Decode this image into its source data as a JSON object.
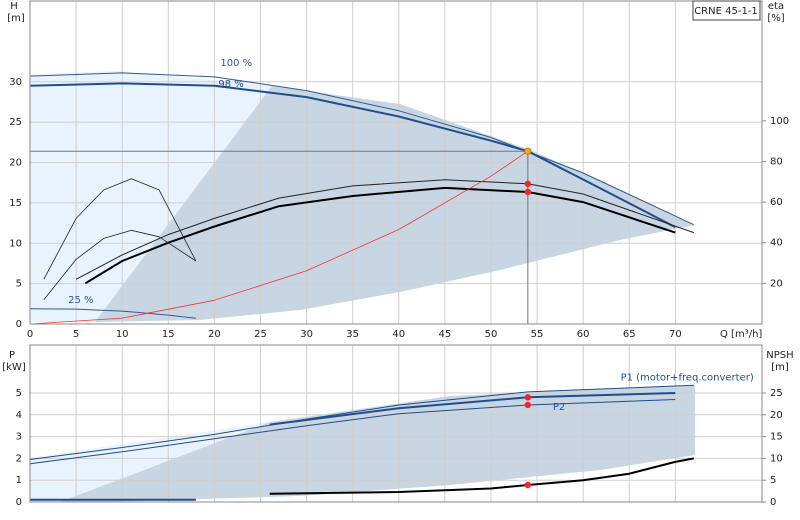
{
  "chart_data": [
    {
      "type": "line",
      "title": "CRNE 45-1-1",
      "x_label": "Q [m³/h]",
      "y_label": "H",
      "y_unit": "[m]",
      "y2_label": "eta",
      "y2_unit": "[%]",
      "xlim": [
        0,
        79.4
      ],
      "xticks": [
        0,
        5,
        10,
        15,
        20,
        25,
        30,
        35,
        40,
        45,
        50,
        55,
        60,
        65,
        70
      ],
      "ylim": [
        0,
        40
      ],
      "yticks": [
        0,
        5,
        10,
        15,
        20,
        25,
        30
      ],
      "y2lim": [
        0,
        159
      ],
      "y2ticks": [
        20,
        40,
        60,
        80,
        100
      ],
      "grid": true,
      "series": [
        {
          "name": "100 %",
          "color": "#2f5b94",
          "x": [
            0,
            10,
            20,
            30,
            40,
            50,
            60,
            72
          ],
          "values": [
            30.7,
            31.1,
            30.6,
            28.9,
            26.4,
            23.1,
            18.7,
            12.3
          ]
        },
        {
          "name": "98 %",
          "color": "#1f4e8c",
          "x": [
            0,
            10,
            20,
            30,
            40,
            50,
            54,
            60,
            70
          ],
          "values": [
            29.5,
            29.8,
            29.5,
            28.1,
            25.7,
            22.7,
            21.4,
            17.9,
            12.0
          ]
        },
        {
          "color": "#222222",
          "axis": "y2",
          "x": [
            5,
            10,
            15,
            20,
            27,
            35,
            45,
            54,
            60,
            72
          ],
          "values": [
            22,
            34,
            44,
            52,
            62,
            68,
            71,
            69,
            64,
            45
          ]
        },
        {
          "color": "#000000",
          "axis": "y2",
          "x": [
            6,
            10,
            15,
            20,
            27,
            35,
            45,
            54,
            60,
            70
          ],
          "values": [
            20,
            31,
            40,
            48,
            58,
            63,
            67,
            65,
            60,
            45
          ]
        },
        {
          "color": "#222222",
          "axis": "y2",
          "x": [
            1.5,
            5,
            8,
            11,
            14,
            18
          ],
          "values": [
            22,
            52,
            66,
            71.5,
            66,
            31
          ]
        },
        {
          "color": "#222222",
          "x": [
            1.5,
            5,
            8,
            11,
            14,
            18
          ],
          "values": [
            3,
            8,
            10.6,
            11.6,
            10.8,
            7.8
          ]
        },
        {
          "name": "25 %",
          "color": "#2f5b94",
          "x": [
            0,
            5,
            10,
            15,
            18
          ],
          "values": [
            1.9,
            1.85,
            1.6,
            1.1,
            0.7
          ]
        },
        {
          "color": "#ff3030",
          "x": [
            0,
            10,
            20,
            30,
            40,
            50,
            54
          ],
          "values": [
            0,
            0.73,
            2.94,
            6.6,
            11.7,
            18.3,
            21.4
          ]
        },
        {
          "color": "#f5a623",
          "marker": true,
          "crosshair": true,
          "x": [
            54
          ],
          "values": [
            21.4
          ]
        },
        {
          "color": "#ff2020",
          "marker": true,
          "axis": "y2",
          "x": [
            54,
            54
          ],
          "values": [
            69,
            65
          ]
        }
      ]
    },
    {
      "type": "line",
      "y_label": "P",
      "y_unit": "[kW]",
      "y2_label": "NPSH",
      "y2_unit": "[m]",
      "xlim": [
        0,
        79.4
      ],
      "xticks": [
        0,
        5,
        10,
        15,
        20,
        25,
        30,
        35,
        40,
        45,
        50,
        55,
        60,
        65,
        70
      ],
      "ylim": [
        0,
        7.2
      ],
      "yticks": [
        0,
        1,
        2,
        3,
        4,
        5
      ],
      "y2lim": [
        0,
        36
      ],
      "y2ticks": [
        0,
        5,
        10,
        15,
        20,
        25
      ],
      "grid": true,
      "series": [
        {
          "name": "P1 (motor+freq.converter)",
          "color": "#1f4e8c",
          "x": [
            0,
            10,
            20,
            30,
            40,
            54,
            72
          ],
          "values": [
            1.95,
            2.5,
            3.1,
            3.8,
            4.45,
            5.05,
            5.35
          ]
        },
        {
          "color": "#1f4e8c",
          "x": [
            26,
            40,
            54,
            70
          ],
          "values": [
            3.55,
            4.3,
            4.8,
            5.0
          ]
        },
        {
          "name": "P2",
          "color": "#1f4e8c",
          "x": [
            0,
            10,
            20,
            30,
            40,
            54,
            70
          ],
          "values": [
            1.75,
            2.3,
            2.9,
            3.5,
            4.05,
            4.45,
            4.7
          ]
        },
        {
          "color": "#000000",
          "axis": "y2",
          "x": [
            26,
            40,
            50,
            54,
            60,
            65,
            70,
            72
          ],
          "values": [
            1.9,
            2.3,
            3.1,
            3.9,
            5,
            6.5,
            9.2,
            10
          ]
        },
        {
          "color": "#1f4e8c",
          "x": [
            0,
            18
          ],
          "values": [
            0.1,
            0.1
          ]
        },
        {
          "color": "#ff2020",
          "marker": true,
          "x": [
            54,
            54
          ],
          "values": [
            4.8,
            4.45
          ]
        },
        {
          "color": "#ff2020",
          "marker": true,
          "axis": "y2",
          "x": [
            54
          ],
          "values": [
            3.9
          ]
        }
      ]
    }
  ]
}
